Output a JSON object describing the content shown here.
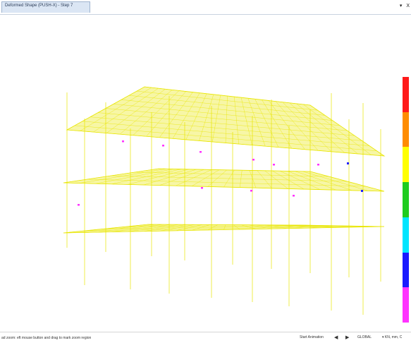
{
  "tab": {
    "title": "Deformed Shape (PUSH-X) - Step 7"
  },
  "window_controls": {
    "dropdown": "▾",
    "close": "X"
  },
  "status": {
    "message": "ad zoom: eft mouse button and drag to mark zoom region",
    "animation": "Start Animation",
    "prev_icon": "◀",
    "next_icon": "▶",
    "coord_system": "GLOBAL",
    "units": "▾ KN, mm, C"
  },
  "legend_colors": [
    "#ff1a1a",
    "#ff8c00",
    "#ffff00",
    "#1fcc1f",
    "#00e5ff",
    "#1a1aff",
    "#ff33ff"
  ],
  "model_colors": {
    "frame": "#e8e600",
    "hinge_pink": "#ff33ff",
    "hinge_blue": "#2222ff"
  }
}
